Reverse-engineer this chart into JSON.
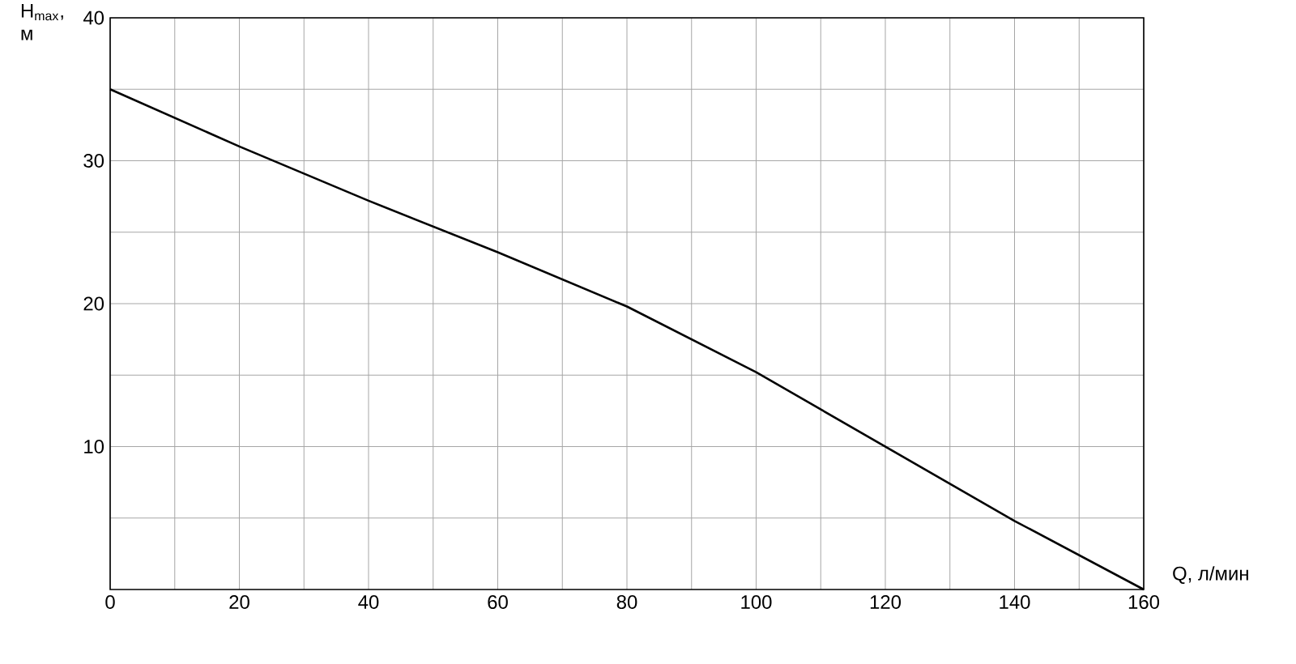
{
  "chart_data": {
    "type": "line",
    "xlabel": "Q, л/мин",
    "ylabel": "H$_{max}$, м",
    "x": [
      0,
      20,
      40,
      60,
      80,
      100,
      120,
      140,
      160
    ],
    "series": [
      {
        "color": "#000000",
        "values": [
          35,
          31,
          27.2,
          23.6,
          19.8,
          15.2,
          10,
          4.8,
          0
        ]
      }
    ],
    "xlim": [
      0,
      160
    ],
    "ylim": [
      0,
      40
    ],
    "xticks": [
      0,
      {
        "value": 10,
        "label": null
      },
      20,
      {
        "value": 30,
        "label": null
      },
      40,
      {
        "value": 50,
        "label": null
      },
      60,
      {
        "value": 70,
        "label": null
      },
      80,
      {
        "value": 90,
        "label": null
      },
      100,
      {
        "value": 110,
        "label": null
      },
      120,
      {
        "value": 130,
        "label": null
      },
      140,
      {
        "value": 150,
        "label": null
      },
      160
    ],
    "yticks": [
      {
        "value": 5,
        "label": null
      },
      10,
      {
        "value": 15,
        "label": null
      },
      20,
      {
        "value": 25,
        "label": null
      },
      30,
      {
        "value": 35,
        "label": null
      },
      40
    ],
    "grid": true
  }
}
